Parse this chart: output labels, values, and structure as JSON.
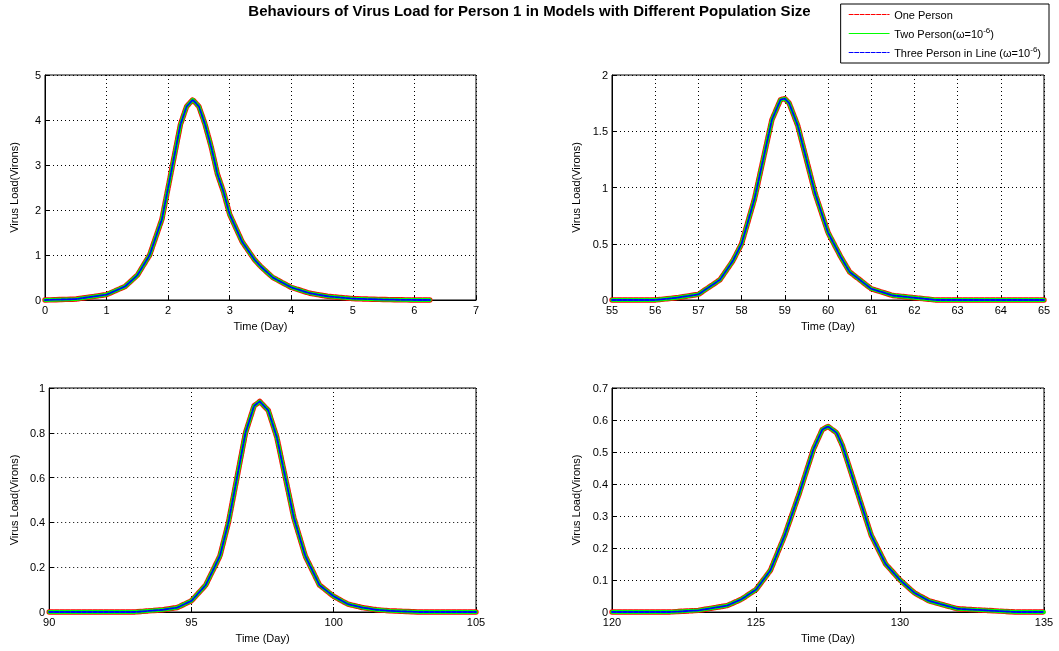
{
  "chart_data": [
    {
      "type": "line",
      "title": "Behaviours of Virus Load for Person 1 in Models with Different Population Size",
      "xlabel": "Time (Day)",
      "ylabel": "Virus Load(Virons)",
      "xlim": [
        0,
        7
      ],
      "xticks": [
        0,
        1,
        2,
        3,
        4,
        5,
        6,
        7
      ],
      "ylim": [
        0,
        5
      ],
      "yticks": [
        0,
        1,
        2,
        3,
        4,
        5
      ],
      "grid": true,
      "legend": false,
      "x": [
        0,
        0.5,
        1,
        1.3,
        1.5,
        1.7,
        1.9,
        2.0,
        2.1,
        2.2,
        2.3,
        2.4,
        2.5,
        2.6,
        2.7,
        2.8,
        2.9,
        3.0,
        3.2,
        3.4,
        3.5,
        3.7,
        4.0,
        4.3,
        4.6,
        5.0,
        5.5,
        6.0,
        6.25
      ],
      "series": [
        {
          "color": "#ff0000",
          "line_style": "dashed",
          "values": [
            0,
            0.02,
            0.12,
            0.3,
            0.55,
            1.0,
            1.8,
            2.5,
            3.2,
            3.9,
            4.3,
            4.45,
            4.3,
            3.9,
            3.4,
            2.8,
            2.4,
            1.9,
            1.3,
            0.9,
            0.75,
            0.5,
            0.28,
            0.15,
            0.08,
            0.03,
            0.01,
            0,
            0
          ]
        },
        {
          "color": "#00ff00",
          "line_style": "solid",
          "values": [
            0,
            0.02,
            0.12,
            0.3,
            0.55,
            1.0,
            1.8,
            2.5,
            3.2,
            3.9,
            4.3,
            4.45,
            4.3,
            3.9,
            3.4,
            2.8,
            2.4,
            1.9,
            1.3,
            0.9,
            0.75,
            0.5,
            0.28,
            0.15,
            0.08,
            0.03,
            0.01,
            0,
            0
          ]
        },
        {
          "color": "#0000ff",
          "line_style": "dashed",
          "values": [
            0,
            0.02,
            0.12,
            0.3,
            0.55,
            1.0,
            1.8,
            2.5,
            3.2,
            3.9,
            4.3,
            4.45,
            4.3,
            3.9,
            3.4,
            2.8,
            2.4,
            1.9,
            1.3,
            0.9,
            0.75,
            0.5,
            0.28,
            0.15,
            0.08,
            0.03,
            0.01,
            0,
            0
          ]
        }
      ]
    },
    {
      "type": "line",
      "xlabel": "Time (Day)",
      "ylabel": "Virus Load(Virons)",
      "xlim": [
        55,
        65
      ],
      "xticks": [
        55,
        56,
        57,
        58,
        59,
        60,
        61,
        62,
        63,
        64,
        65
      ],
      "ylim": [
        0,
        2
      ],
      "yticks": [
        0,
        0.5,
        1,
        1.5,
        2
      ],
      "grid": true,
      "legend": "top right",
      "x": [
        55,
        56,
        56.5,
        57,
        57.5,
        57.8,
        58,
        58.3,
        58.5,
        58.7,
        58.9,
        59,
        59.1,
        59.3,
        59.5,
        59.7,
        60,
        60.3,
        60.5,
        61,
        61.5,
        62,
        62.5,
        63,
        64,
        65
      ],
      "series": [
        {
          "name": "One Person",
          "color": "#ff0000",
          "line_style": "dashed",
          "values": [
            0,
            0,
            0.02,
            0.05,
            0.18,
            0.35,
            0.5,
            0.9,
            1.25,
            1.6,
            1.78,
            1.79,
            1.75,
            1.55,
            1.25,
            0.95,
            0.6,
            0.38,
            0.25,
            0.1,
            0.04,
            0.02,
            0,
            0,
            0,
            0
          ]
        },
        {
          "name": "Two Person(ω=10$^{-6}$)",
          "color": "#00ff00",
          "line_style": "solid",
          "values": [
            0,
            0,
            0.02,
            0.05,
            0.18,
            0.35,
            0.5,
            0.9,
            1.25,
            1.6,
            1.78,
            1.79,
            1.75,
            1.55,
            1.25,
            0.95,
            0.6,
            0.38,
            0.25,
            0.1,
            0.04,
            0.02,
            0,
            0,
            0,
            0
          ]
        },
        {
          "name": "Three Person in Line (ω=10$^{-6}$)",
          "color": "#0000ff",
          "line_style": "dashed",
          "values": [
            0,
            0,
            0.02,
            0.05,
            0.18,
            0.35,
            0.5,
            0.9,
            1.25,
            1.6,
            1.78,
            1.79,
            1.75,
            1.55,
            1.25,
            0.95,
            0.6,
            0.38,
            0.25,
            0.1,
            0.04,
            0.02,
            0,
            0,
            0,
            0
          ]
        }
      ]
    },
    {
      "type": "line",
      "xlabel": "Time (Day)",
      "ylabel": "Virus Load(Virons)",
      "xlim": [
        90,
        105
      ],
      "xticks": [
        90,
        95,
        100,
        105
      ],
      "ylim": [
        0,
        1
      ],
      "yticks": [
        0,
        0.2,
        0.4,
        0.6,
        0.8,
        1
      ],
      "grid": true,
      "legend": false,
      "x": [
        90,
        93,
        94,
        94.5,
        95,
        95.5,
        96,
        96.3,
        96.6,
        96.9,
        97.2,
        97.4,
        97.7,
        98,
        98.3,
        98.6,
        99,
        99.5,
        100,
        100.5,
        101,
        101.5,
        102,
        103,
        105
      ],
      "series": [
        {
          "color": "#ff0000",
          "line_style": "dashed",
          "values": [
            0,
            0,
            0.01,
            0.02,
            0.05,
            0.12,
            0.25,
            0.4,
            0.6,
            0.8,
            0.92,
            0.94,
            0.9,
            0.78,
            0.6,
            0.42,
            0.25,
            0.12,
            0.07,
            0.035,
            0.02,
            0.01,
            0.005,
            0,
            0
          ]
        },
        {
          "color": "#00ff00",
          "line_style": "solid",
          "values": [
            0,
            0,
            0.01,
            0.02,
            0.05,
            0.12,
            0.25,
            0.4,
            0.6,
            0.8,
            0.92,
            0.94,
            0.9,
            0.78,
            0.6,
            0.42,
            0.25,
            0.12,
            0.07,
            0.035,
            0.02,
            0.01,
            0.005,
            0,
            0
          ]
        },
        {
          "color": "#0000ff",
          "line_style": "dashed",
          "values": [
            0,
            0,
            0.01,
            0.02,
            0.05,
            0.12,
            0.25,
            0.4,
            0.6,
            0.8,
            0.92,
            0.94,
            0.9,
            0.78,
            0.6,
            0.42,
            0.25,
            0.12,
            0.07,
            0.035,
            0.02,
            0.01,
            0.005,
            0,
            0
          ]
        }
      ]
    },
    {
      "type": "line",
      "xlabel": "Time (Day)",
      "ylabel": "Virus Load(Virons)",
      "xlim": [
        120,
        135
      ],
      "xticks": [
        120,
        125,
        130,
        135
      ],
      "ylim": [
        0,
        0.7
      ],
      "yticks": [
        0,
        0.1,
        0.2,
        0.3,
        0.4,
        0.5,
        0.6,
        0.7
      ],
      "grid": true,
      "legend": false,
      "x": [
        120,
        122,
        123,
        124,
        124.5,
        125,
        125.5,
        126,
        126.5,
        127,
        127.3,
        127.5,
        127.8,
        128,
        128.5,
        129,
        129.5,
        130,
        130.5,
        131,
        132,
        133,
        134,
        135
      ],
      "series": [
        {
          "color": "#ff0000",
          "line_style": "dashed",
          "values": [
            0,
            0,
            0.005,
            0.02,
            0.04,
            0.07,
            0.13,
            0.24,
            0.37,
            0.51,
            0.57,
            0.58,
            0.56,
            0.52,
            0.38,
            0.24,
            0.15,
            0.1,
            0.06,
            0.035,
            0.01,
            0.005,
            0,
            0
          ]
        },
        {
          "color": "#00ff00",
          "line_style": "solid",
          "values": [
            0,
            0,
            0.005,
            0.02,
            0.04,
            0.07,
            0.13,
            0.24,
            0.37,
            0.51,
            0.57,
            0.58,
            0.56,
            0.52,
            0.38,
            0.24,
            0.15,
            0.1,
            0.06,
            0.035,
            0.01,
            0.005,
            0,
            0
          ]
        },
        {
          "color": "#0000ff",
          "line_style": "dashed",
          "values": [
            0,
            0,
            0.005,
            0.02,
            0.04,
            0.07,
            0.13,
            0.24,
            0.37,
            0.51,
            0.57,
            0.58,
            0.56,
            0.52,
            0.38,
            0.24,
            0.15,
            0.1,
            0.06,
            0.035,
            0.01,
            0.005,
            0,
            0
          ]
        }
      ]
    }
  ]
}
